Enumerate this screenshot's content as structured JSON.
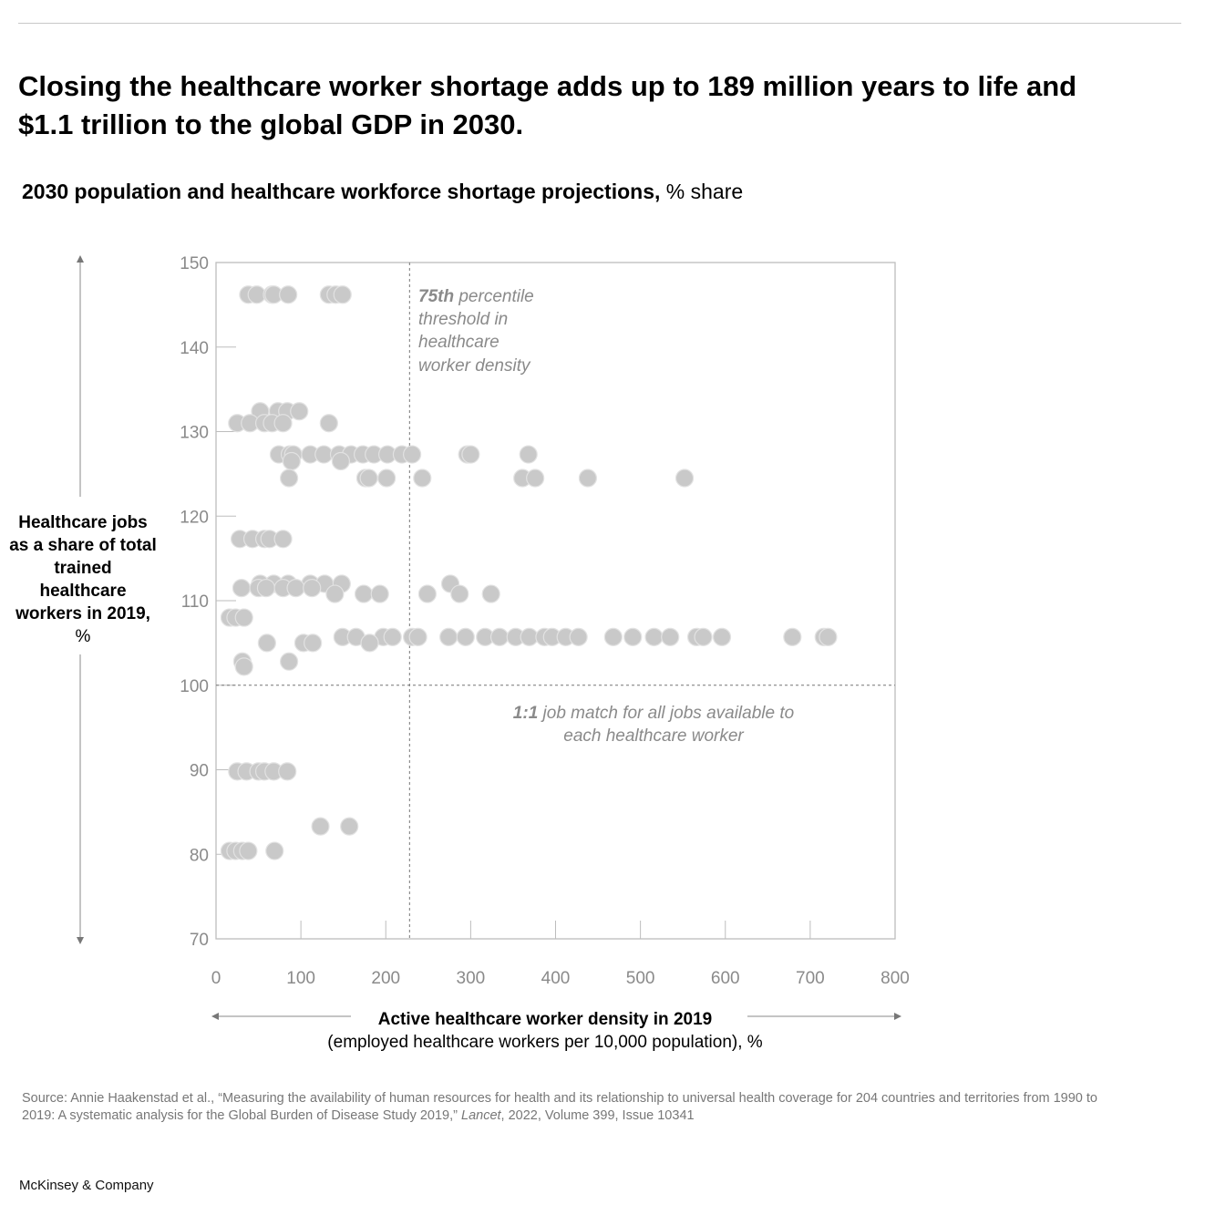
{
  "title": "Closing the healthcare worker shortage adds up to 189 million years to life and $1.1 trillion to the global GDP in 2030.",
  "subtitle_bold": "2030 population and healthcare workforce shortage projections,",
  "subtitle_unit": " % share",
  "ylabel_bold": "Healthcare jobs as a share of total trained healthcare workers in 2019,",
  "ylabel_unit": " %",
  "xlabel_bold": "Active healthcare worker density in 2019",
  "xlabel_sub": "(employed healthcare workers per 10,000 population), %",
  "source_pre": "Source: Annie Haakenstad et al., “Measuring the availability of human resources for health and its relationship to universal health coverage for 204 countries and territories from 1990 to 2019: A systematic analysis for the Global Burden of Disease Study 2019,” ",
  "source_journal": "Lancet",
  "source_post": ", 2022, Volume 399, Issue 10341",
  "brand": "McKinsey & Company",
  "annotations": {
    "percentile_bold": "75th",
    "percentile_lines": [
      " percentile",
      "threshold in",
      "healthcare",
      "worker density"
    ],
    "match_bold": "1:1",
    "match_line1": " job match for all jobs available to",
    "match_line2": "each healthcare worker"
  },
  "colors": {
    "point": "#c9c9c9",
    "axis": "#bdbdbd",
    "text_muted": "#8a8a8a"
  },
  "chart_data": {
    "type": "scatter",
    "xlabel": "Active healthcare worker density in 2019 (employed healthcare workers per 10,000 population), %",
    "ylabel": "Healthcare jobs as a share of total trained healthcare workers in 2019, %",
    "xlim": [
      0,
      800
    ],
    "ylim": [
      70,
      150
    ],
    "xticks": [
      0,
      100,
      200,
      300,
      400,
      500,
      600,
      700,
      800
    ],
    "yticks": [
      70,
      80,
      90,
      100,
      110,
      120,
      130,
      140,
      150
    ],
    "reference_lines": {
      "x": 228,
      "y": 100
    },
    "rows": [
      {
        "y": 146.2,
        "x": [
          38,
          48,
          66,
          68,
          85,
          133,
          141,
          149
        ]
      },
      {
        "y": 132.4,
        "x": [
          52,
          73,
          84,
          98
        ]
      },
      {
        "y": 131.0,
        "x": [
          25,
          40,
          57,
          66,
          79,
          133
        ]
      },
      {
        "y": 127.3,
        "x": [
          74,
          87,
          91,
          111,
          127,
          145,
          159,
          173,
          186,
          202,
          219,
          231,
          296,
          300,
          368
        ]
      },
      {
        "y": 126.5,
        "x": [
          89,
          147
        ]
      },
      {
        "y": 124.5,
        "x": [
          86,
          176,
          180,
          201,
          243,
          361,
          376,
          438,
          552
        ]
      },
      {
        "y": 117.3,
        "x": [
          28,
          43,
          57,
          63,
          79
        ]
      },
      {
        "y": 112.0,
        "x": [
          52,
          68,
          85,
          111,
          128,
          148,
          276
        ]
      },
      {
        "y": 111.5,
        "x": [
          30,
          50,
          59,
          79,
          94,
          113
        ]
      },
      {
        "y": 110.8,
        "x": [
          140,
          174,
          193,
          249,
          287,
          324
        ]
      },
      {
        "y": 108.0,
        "x": [
          16,
          23,
          33
        ]
      },
      {
        "y": 105.7,
        "x": [
          149,
          165,
          197,
          208,
          231,
          238,
          274,
          294,
          317,
          334,
          353,
          369,
          387,
          396,
          412,
          427,
          468,
          491,
          516,
          535,
          566,
          574,
          596,
          679,
          716,
          721
        ]
      },
      {
        "y": 105.0,
        "x": [
          60,
          103,
          114,
          181
        ]
      },
      {
        "y": 102.8,
        "x": [
          31,
          86
        ]
      },
      {
        "y": 102.2,
        "x": [
          33
        ]
      },
      {
        "y": 89.8,
        "x": [
          25,
          36,
          50,
          57,
          68,
          84
        ]
      },
      {
        "y": 83.3,
        "x": [
          123,
          157
        ]
      },
      {
        "y": 80.4,
        "x": [
          16,
          23,
          31,
          38,
          69
        ]
      }
    ]
  }
}
